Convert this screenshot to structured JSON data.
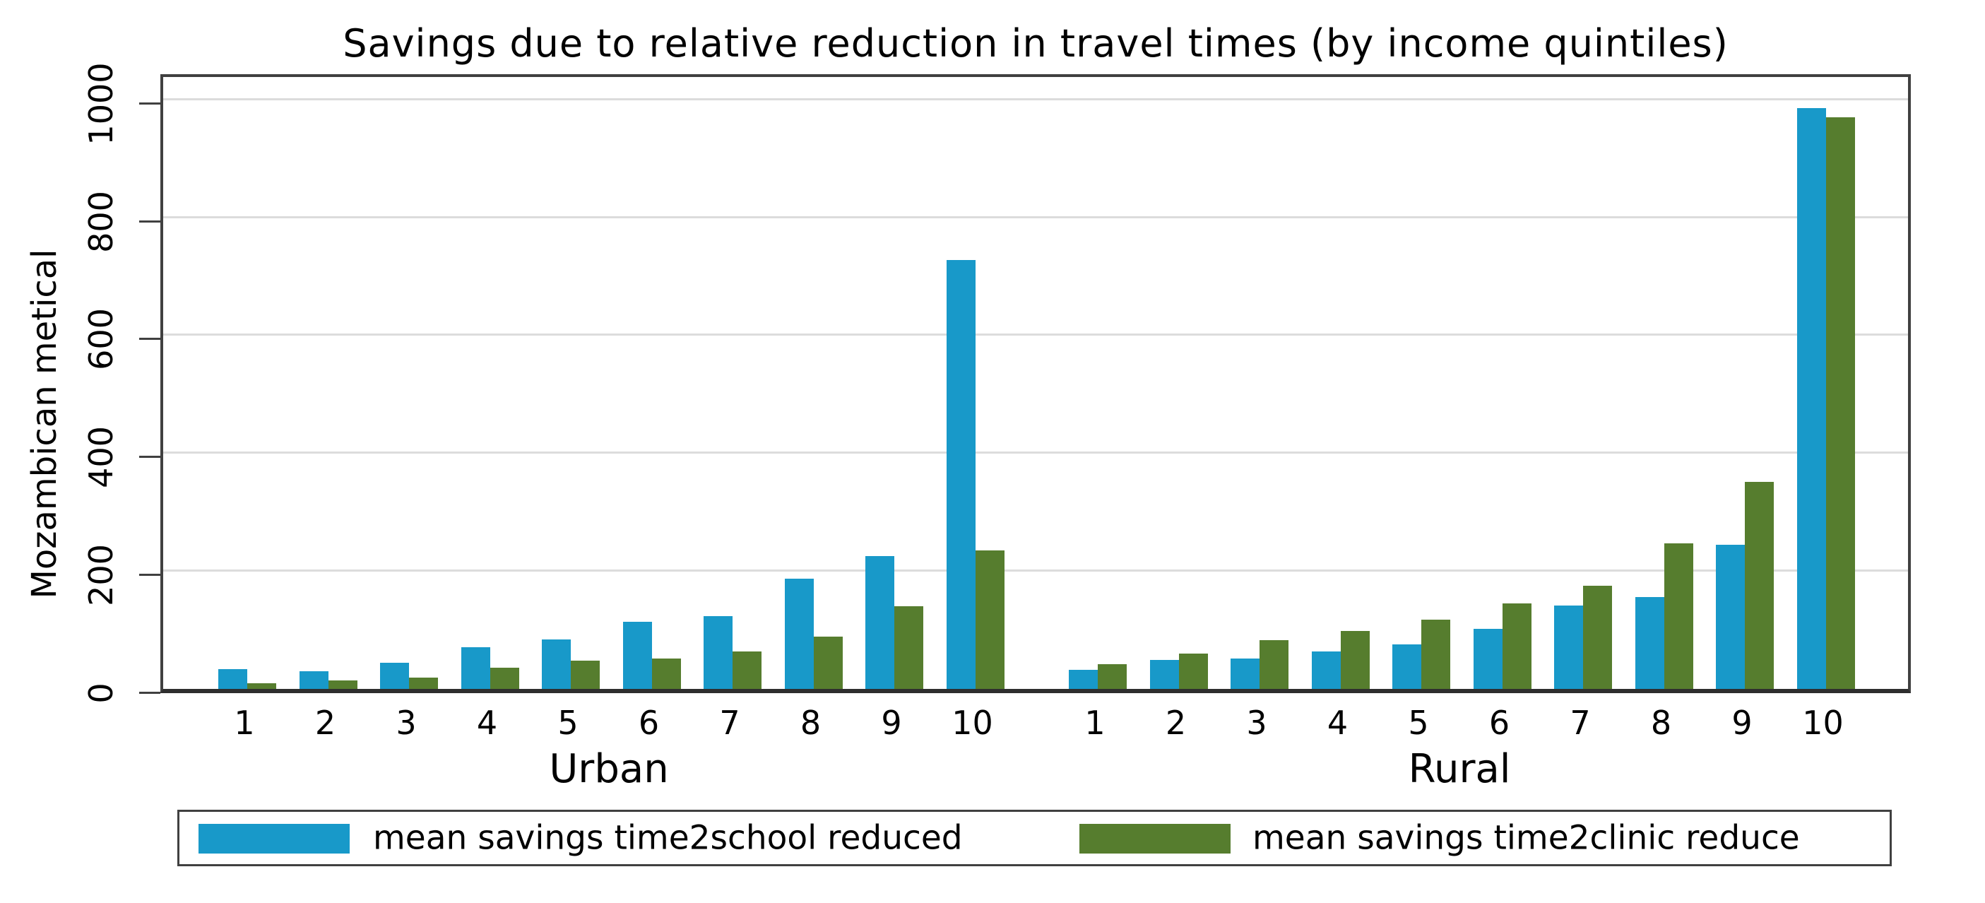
{
  "title": "Savings due to relative reduction in travel times (by income quintiles)",
  "y_axis": {
    "label": "Mozambican metical",
    "tick_labels": [
      "0",
      "200",
      "400",
      "600",
      "800",
      "1000"
    ]
  },
  "x_axis": {
    "group_labels": [
      "Urban",
      "Rural"
    ],
    "category_labels": [
      "1",
      "2",
      "3",
      "4",
      "5",
      "6",
      "7",
      "8",
      "9",
      "10"
    ]
  },
  "legend": {
    "items": [
      {
        "label": "mean savings time2school reduced",
        "color": "#1899c9"
      },
      {
        "label": "mean savings time2clinic reduce",
        "color": "#567d2e"
      }
    ]
  },
  "colors": {
    "school_blue": "#1899c9",
    "clinic_green": "#567d2e",
    "gridline": "#dcdcdc",
    "frame": "#404040"
  },
  "chart_data": {
    "type": "bar",
    "title": "Savings due to relative reduction in travel times (by income quintiles)",
    "xlabel": "",
    "ylabel": "Mozambican metical",
    "ylim": [
      0,
      1050
    ],
    "yticks": [
      0,
      200,
      400,
      600,
      800,
      1000
    ],
    "grid": true,
    "legend_position": "bottom",
    "groups": [
      "Urban",
      "Rural"
    ],
    "categories": [
      "1",
      "2",
      "3",
      "4",
      "5",
      "6",
      "7",
      "8",
      "9",
      "10"
    ],
    "series": [
      {
        "name": "mean savings time2school reduced",
        "color": "#1899c9",
        "values": {
          "Urban": [
            33,
            30,
            44,
            71,
            84,
            114,
            123,
            187,
            225,
            727
          ],
          "Rural": [
            32,
            49,
            52,
            63,
            75,
            102,
            142,
            156,
            244,
            985
          ]
        }
      },
      {
        "name": "mean savings time2clinic reduce",
        "color": "#567d2e",
        "values": {
          "Urban": [
            10,
            14,
            19,
            36,
            48,
            51,
            64,
            89,
            140,
            235
          ],
          "Rural": [
            42,
            60,
            83,
            98,
            117,
            145,
            175,
            247,
            351,
            970
          ]
        }
      }
    ]
  }
}
